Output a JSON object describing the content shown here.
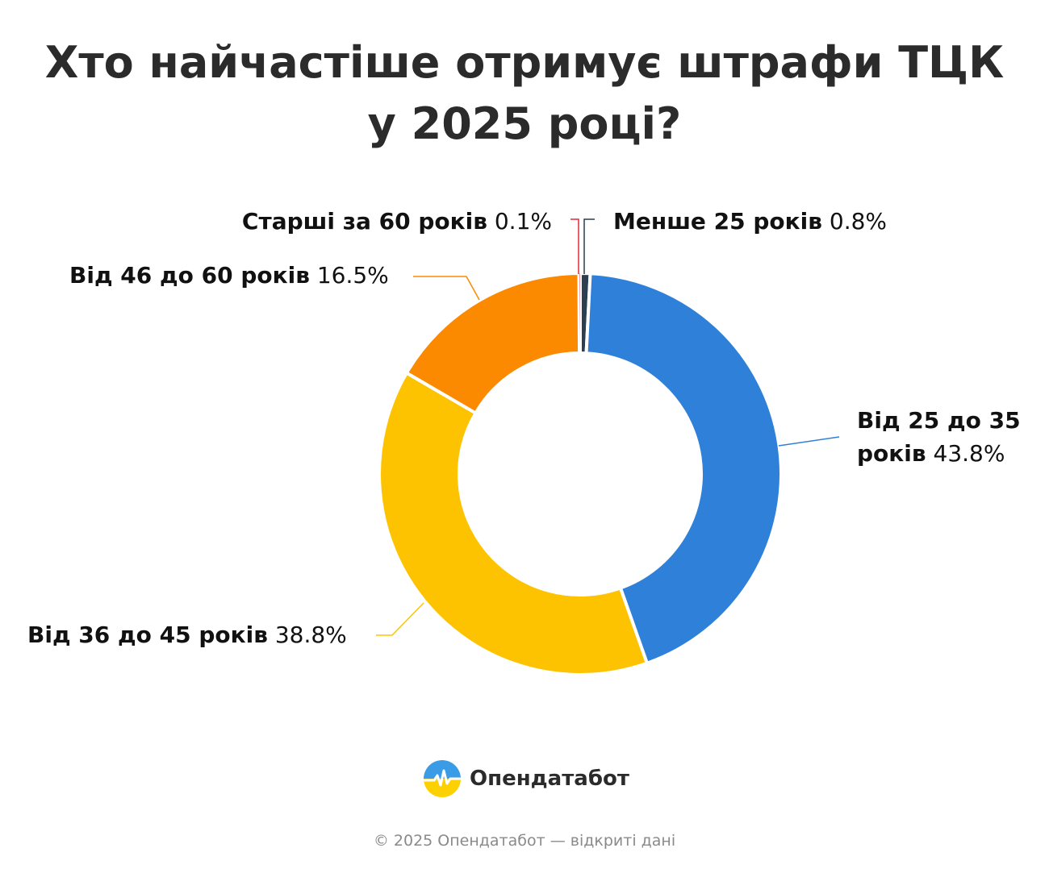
{
  "title_lines": [
    "Хто найчастіше отримує штрафи ТЦК",
    "у 2025 році?"
  ],
  "chart_data": {
    "type": "pie",
    "title": "Хто найчастіше отримує штрафи ТЦК у 2025 році?",
    "donut": true,
    "slices": [
      {
        "name": "Менше 25 років",
        "value": 0.8,
        "label": "0.8%",
        "color": "#2c3e50"
      },
      {
        "name": "Від 25 до 35 років",
        "name_lines": [
          "Від 25 до 35",
          "років"
        ],
        "value": 43.8,
        "label": "43.8%",
        "color": "#2f80d9"
      },
      {
        "name": "Від 36 до 45 років",
        "value": 38.8,
        "label": "38.8%",
        "color": "#fdc300"
      },
      {
        "name": "Від 46 до 60 років",
        "value": 16.5,
        "label": "16.5%",
        "color": "#fb8a00"
      },
      {
        "name": "Старші за 60 років",
        "value": 0.1,
        "label": "0.1%",
        "color": "#e0283a"
      }
    ]
  },
  "brand": {
    "name": "Опендатабот",
    "logo_icon": "opendatabot-logo-icon"
  },
  "footer": "© 2025 Опендатабот — відкриті дані"
}
